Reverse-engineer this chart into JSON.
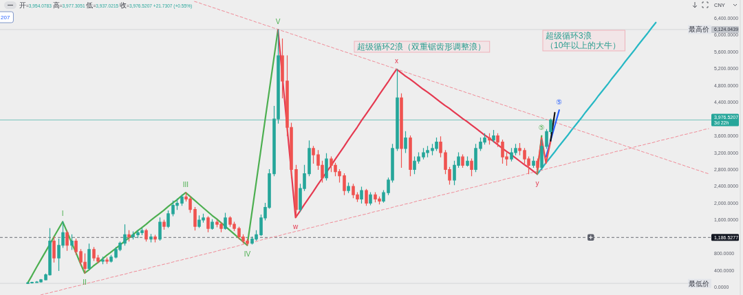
{
  "chart_data": {
    "type": "candlestick",
    "subtitle": "开=3,954.0783 高=3,977.3051 低=3,937.0215 收=3,976.5207 +21.7307 (+0.55%)",
    "ylabel": "CNY",
    "tick_labels": "y",
    "categories": [
      null,
      null,
      null,
      null,
      null,
      null,
      null,
      null,
      null,
      null,
      null,
      null,
      null,
      null,
      null,
      null,
      null,
      null,
      null,
      null,
      null,
      null,
      null,
      null,
      null,
      null,
      null,
      null,
      null,
      null,
      null,
      null,
      null,
      null,
      null,
      null,
      null,
      null,
      null,
      null,
      null,
      null,
      null,
      null,
      null,
      null,
      null,
      null,
      null,
      null,
      null,
      null,
      null,
      null,
      null,
      null,
      null,
      null,
      null,
      null,
      null,
      null,
      null,
      null,
      null,
      null,
      null,
      null,
      null,
      null,
      null,
      null,
      null,
      null,
      null,
      null,
      null,
      null,
      null,
      null,
      null,
      null,
      null,
      null,
      null,
      null,
      null,
      null,
      null,
      null,
      null,
      null,
      null,
      null,
      null,
      null,
      null,
      null,
      null,
      null,
      null,
      null,
      null,
      null,
      null,
      null,
      null,
      null,
      null,
      null,
      null,
      null,
      null,
      null,
      null,
      null,
      null,
      null,
      null,
      null,
      null,
      null,
      null,
      null,
      null,
      null,
      null,
      null,
      null,
      null,
      null,
      null,
      null,
      null,
      null,
      null,
      null,
      null,
      null,
      null,
      null,
      null,
      null,
      null,
      null,
      null,
      null,
      null,
      null,
      null,
      null,
      null,
      null,
      null,
      null,
      null
    ],
    "ylim": [
      -180,
      6825
    ],
    "yticks": [
      {
        "value": 0,
        "label": "0.0000"
      },
      {
        "value": 400,
        "label": "400.0000"
      },
      {
        "value": 800,
        "label": "800.0000"
      },
      {
        "value": 1186.5277,
        "label": "1,186.5277"
      },
      {
        "value": 1600,
        "label": "1,600.0000"
      },
      {
        "value": 2000,
        "label": "2,000.0000"
      },
      {
        "value": 2400,
        "label": "2,400.0000"
      },
      {
        "value": 2800,
        "label": "2,800.0000"
      },
      {
        "value": 3200,
        "label": "3,200.0000"
      },
      {
        "value": 3600,
        "label": "3,600.0000"
      },
      {
        "value": 3976.5207,
        "label": "3,976.5207\n3d 22h"
      },
      {
        "value": 4400,
        "label": "4,400.0000"
      },
      {
        "value": 4800,
        "label": "4,800.0000"
      },
      {
        "value": 5200,
        "label": "5,200.0000"
      },
      {
        "value": 5600,
        "label": "5,600.0000"
      },
      {
        "value": 6000,
        "label": "6,000.0000"
      },
      {
        "value": 6124.0439,
        "label": "6,124.0439"
      },
      {
        "value": 6400,
        "label": "6,400.0000"
      }
    ],
    "ohlc": [
      [
        100,
        115,
        96,
        110
      ],
      [
        110,
        125,
        105,
        120
      ],
      [
        120,
        140,
        115,
        130
      ],
      [
        130,
        190,
        125,
        180
      ],
      [
        180,
        320,
        175,
        300
      ],
      [
        300,
        1400,
        290,
        1100
      ],
      [
        1100,
        1200,
        600,
        700
      ],
      [
        700,
        1150,
        400,
        1000
      ],
      [
        1000,
        1560,
        950,
        1300
      ],
      [
        1300,
        1350,
        880,
        1000
      ],
      [
        1000,
        1250,
        900,
        1100
      ],
      [
        1100,
        1150,
        780,
        850
      ],
      [
        850,
        900,
        520,
        600
      ],
      [
        600,
        800,
        340,
        450
      ],
      [
        450,
        1030,
        430,
        900
      ],
      [
        900,
        950,
        640,
        700
      ],
      [
        700,
        760,
        580,
        620
      ],
      [
        620,
        720,
        560,
        650
      ],
      [
        650,
        700,
        570,
        620
      ],
      [
        620,
        760,
        600,
        720
      ],
      [
        720,
        950,
        700,
        900
      ],
      [
        900,
        1080,
        870,
        1050
      ],
      [
        1050,
        1490,
        1000,
        1250
      ],
      [
        1250,
        1350,
        1100,
        1200
      ],
      [
        1200,
        1320,
        1150,
        1250
      ],
      [
        1250,
        1360,
        1180,
        1300
      ],
      [
        1300,
        1400,
        1250,
        1350
      ],
      [
        1350,
        1380,
        1100,
        1150
      ],
      [
        1150,
        1260,
        1080,
        1200
      ],
      [
        1200,
        1240,
        1080,
        1150
      ],
      [
        1150,
        1650,
        1120,
        1550
      ],
      [
        1550,
        1600,
        1380,
        1450
      ],
      [
        1450,
        1820,
        1420,
        1750
      ],
      [
        1750,
        2050,
        1700,
        1950
      ],
      [
        1950,
        2100,
        1850,
        2000
      ],
      [
        2000,
        2200,
        1950,
        2150
      ],
      [
        2150,
        2250,
        2050,
        2100
      ],
      [
        2100,
        2150,
        1780,
        1850
      ],
      [
        1850,
        1900,
        1360,
        1450
      ],
      [
        1450,
        1700,
        1420,
        1600
      ],
      [
        1600,
        1740,
        1550,
        1650
      ],
      [
        1650,
        1680,
        1320,
        1400
      ],
      [
        1400,
        1610,
        1380,
        1550
      ],
      [
        1550,
        1600,
        1440,
        1500
      ],
      [
        1500,
        1540,
        1320,
        1400
      ],
      [
        1400,
        1760,
        1380,
        1650
      ],
      [
        1650,
        1680,
        1450,
        1500
      ],
      [
        1500,
        1550,
        1350,
        1400
      ],
      [
        1400,
        1430,
        1150,
        1200
      ],
      [
        1200,
        1250,
        1050,
        1100
      ],
      [
        1100,
        1150,
        1000,
        1050
      ],
      [
        1050,
        1200,
        1030,
        1150
      ],
      [
        1150,
        1350,
        1120,
        1250
      ],
      [
        1250,
        1720,
        1230,
        1650
      ],
      [
        1650,
        2000,
        1600,
        1900
      ],
      [
        1900,
        2800,
        1880,
        2700
      ],
      [
        2700,
        4300,
        2650,
        4000
      ],
      [
        4000,
        6120,
        3900,
        5500
      ],
      [
        5500,
        5900,
        4500,
        4900
      ],
      [
        4900,
        5500,
        3600,
        3800
      ],
      [
        3800,
        3900,
        2600,
        2800
      ],
      [
        2800,
        2900,
        1660,
        1850
      ],
      [
        1850,
        2450,
        1800,
        2350
      ],
      [
        2350,
        2900,
        2300,
        2700
      ],
      [
        2700,
        3480,
        2650,
        3300
      ],
      [
        3300,
        3350,
        2950,
        3150
      ],
      [
        3150,
        3250,
        2800,
        2900
      ],
      [
        2900,
        3000,
        2500,
        2600
      ],
      [
        2600,
        3180,
        2550,
        3050
      ],
      [
        3050,
        3100,
        2750,
        2900
      ],
      [
        2900,
        2950,
        2650,
        2750
      ],
      [
        2750,
        2800,
        2500,
        2650
      ],
      [
        2650,
        2700,
        2200,
        2300
      ],
      [
        2300,
        2480,
        2250,
        2400
      ],
      [
        2400,
        2450,
        2130,
        2200
      ],
      [
        2200,
        2250,
        2040,
        2100
      ],
      [
        2100,
        2380,
        2000,
        2300
      ],
      [
        2300,
        2330,
        1950,
        2000
      ],
      [
        2000,
        2250,
        1960,
        2200
      ],
      [
        2200,
        2250,
        2030,
        2100
      ],
      [
        2100,
        2150,
        1980,
        2050
      ],
      [
        2050,
        2300,
        2020,
        2250
      ],
      [
        2250,
        2600,
        2200,
        2550
      ],
      [
        2550,
        3400,
        2500,
        3300
      ],
      [
        3300,
        5180,
        3250,
        4500
      ],
      [
        4500,
        4600,
        2850,
        3300
      ],
      [
        3300,
        3700,
        3200,
        3550
      ],
      [
        3550,
        3600,
        2650,
        2800
      ],
      [
        2800,
        3100,
        2700,
        3000
      ],
      [
        3000,
        3200,
        2950,
        3100
      ],
      [
        3100,
        3300,
        3050,
        3200
      ],
      [
        3200,
        3350,
        3100,
        3250
      ],
      [
        3250,
        3400,
        3150,
        3300
      ],
      [
        3300,
        3550,
        3250,
        3450
      ],
      [
        3450,
        3580,
        3100,
        3200
      ],
      [
        3200,
        3250,
        2700,
        2800
      ],
      [
        2800,
        2850,
        2450,
        2550
      ],
      [
        2550,
        3000,
        2440,
        2900
      ],
      [
        2900,
        3200,
        2850,
        3100
      ],
      [
        3100,
        3150,
        2850,
        2900
      ],
      [
        2900,
        3100,
        2880,
        3000
      ],
      [
        3000,
        3050,
        2650,
        2800
      ],
      [
        2800,
        3400,
        2750,
        3300
      ],
      [
        3300,
        3550,
        3250,
        3450
      ],
      [
        3450,
        3650,
        3400,
        3550
      ],
      [
        3550,
        3650,
        3400,
        3500
      ],
      [
        3500,
        3730,
        3450,
        3600
      ],
      [
        3600,
        3650,
        3350,
        3450
      ],
      [
        3450,
        3500,
        2950,
        3100
      ],
      [
        3100,
        3200,
        2900,
        3050
      ],
      [
        3050,
        3300,
        3000,
        3200
      ],
      [
        3200,
        3400,
        3150,
        3300
      ],
      [
        3300,
        3420,
        3150,
        3250
      ],
      [
        3250,
        3300,
        2950,
        3050
      ],
      [
        3050,
        3100,
        2700,
        2900
      ],
      [
        2900,
        3100,
        2850,
        3000
      ],
      [
        3000,
        3050,
        2690,
        2850
      ],
      [
        2850,
        3500,
        2800,
        3350
      ],
      [
        3350,
        3750,
        3300,
        3700
      ],
      [
        3700,
        4000,
        3650,
        3976.5207
      ],
      null,
      null,
      null,
      null,
      null,
      null,
      null,
      null,
      null,
      null,
      null,
      null,
      null,
      null,
      null,
      null,
      null,
      null,
      null,
      null,
      null,
      null,
      null,
      null,
      null,
      null,
      null,
      null,
      null,
      null,
      null,
      null,
      null,
      null,
      null,
      null
    ],
    "colors": [
      "#26a69a",
      "#26a69a",
      "#26a69a",
      "#26a69a",
      "#26a69a",
      "#26a69a",
      "#ef5350",
      "#26a69a",
      "#26a69a",
      "#ef5350",
      "#26a69a",
      "#ef5350",
      "#ef5350",
      "#ef5350",
      "#26a69a",
      "#ef5350",
      "#ef5350",
      "#26a69a",
      "#ef5350",
      "#26a69a",
      "#26a69a",
      "#26a69a",
      "#26a69a",
      "#ef5350",
      "#26a69a",
      "#26a69a",
      "#26a69a",
      "#ef5350",
      "#26a69a",
      "#ef5350",
      "#26a69a",
      "#ef5350",
      "#26a69a",
      "#26a69a",
      "#26a69a",
      "#26a69a",
      "#ef5350",
      "#ef5350",
      "#ef5350",
      "#26a69a",
      "#26a69a",
      "#ef5350",
      "#26a69a",
      "#ef5350",
      "#ef5350",
      "#26a69a",
      "#ef5350",
      "#ef5350",
      "#ef5350",
      "#ef5350",
      "#ef5350",
      "#26a69a",
      "#26a69a",
      "#26a69a",
      "#26a69a",
      "#26a69a",
      "#26a69a",
      "#26a69a",
      "#ef5350",
      "#ef5350",
      "#ef5350",
      "#ef5350",
      "#26a69a",
      "#26a69a",
      "#26a69a",
      "#ef5350",
      "#ef5350",
      "#ef5350",
      "#26a69a",
      "#ef5350",
      "#ef5350",
      "#ef5350",
      "#ef5350",
      "#26a69a",
      "#ef5350",
      "#ef5350",
      "#26a69a",
      "#ef5350",
      "#26a69a",
      "#ef5350",
      "#ef5350",
      "#26a69a",
      "#26a69a",
      "#26a69a",
      "#26a69a",
      "#ef5350",
      "#26a69a",
      "#ef5350",
      "#26a69a",
      "#26a69a",
      "#26a69a",
      "#26a69a",
      "#26a69a",
      "#26a69a",
      "#ef5350",
      "#ef5350",
      "#ef5350",
      "#26a69a",
      "#26a69a",
      "#ef5350",
      "#26a69a",
      "#ef5350",
      "#26a69a",
      "#26a69a",
      "#26a69a",
      "#ef5350",
      "#26a69a",
      "#ef5350",
      "#ef5350",
      "#ef5350",
      "#26a69a",
      "#26a69a",
      "#ef5350",
      "#ef5350",
      "#ef5350",
      "#26a69a",
      "#ef5350",
      "#26a69a",
      "#26a69a",
      "#26a69a",
      null,
      null,
      null,
      null,
      null,
      null,
      null,
      null,
      null,
      null,
      null,
      null,
      null,
      null,
      null,
      null,
      null,
      null,
      null,
      null,
      null,
      null,
      null,
      null,
      null,
      null,
      null,
      null,
      null,
      null,
      null,
      null,
      null,
      null,
      null,
      null
    ],
    "series": [
      {
        "type": "line",
        "color": "#4caf50",
        "values": [
          100,
          280,
          470,
          650,
          830,
          1010,
          1200,
          1380,
          1560,
          1320,
          1070,
          830,
          580,
          340,
          420,
          510,
          590,
          670,
          760,
          840,
          920,
          1000,
          1090,
          1170,
          1250,
          1340,
          1420,
          1500,
          1590,
          1670,
          1750,
          1830,
          1920,
          2000,
          2080,
          2170,
          2250,
          2160,
          2070,
          1980,
          1890,
          1800,
          1710,
          1630,
          1540,
          1450,
          1360,
          1270,
          1180,
          1090,
          1000,
          1730,
          2460,
          3190,
          3930,
          4660,
          5390,
          6120,
          null,
          null,
          null,
          null,
          null,
          null,
          null,
          null,
          null,
          null,
          null,
          null,
          null,
          null,
          null,
          null,
          null,
          null,
          null,
          null,
          null,
          null,
          null,
          null,
          null,
          null,
          null,
          null,
          null,
          null,
          null,
          null,
          null,
          null,
          null,
          null,
          null,
          null,
          null,
          null,
          null,
          null,
          null,
          null,
          null,
          null,
          null,
          null,
          null,
          null,
          null,
          null,
          null,
          null,
          null,
          null,
          null,
          null,
          null,
          null,
          null,
          null,
          null,
          null,
          null,
          null,
          null,
          null,
          null,
          null,
          null,
          null,
          null,
          null,
          null,
          null,
          null,
          null,
          null,
          null,
          null,
          null,
          null,
          null,
          null,
          null,
          null,
          null,
          null,
          null,
          null,
          null,
          null,
          null,
          null,
          null,
          null,
          null
        ]
      },
      {
        "type": "line",
        "color": "#e53950",
        "values": [
          null,
          null,
          null,
          null,
          null,
          null,
          null,
          null,
          null,
          null,
          null,
          null,
          null,
          null,
          null,
          null,
          null,
          null,
          null,
          null,
          null,
          null,
          null,
          null,
          null,
          null,
          null,
          null,
          null,
          null,
          null,
          null,
          null,
          null,
          null,
          null,
          null,
          null,
          null,
          null,
          null,
          null,
          null,
          null,
          null,
          null,
          null,
          null,
          null,
          null,
          null,
          null,
          null,
          null,
          null,
          null,
          null,
          6120,
          5010,
          3890,
          2780,
          1660,
          1810,
          1970,
          2120,
          2270,
          2430,
          2580,
          2730,
          2880,
          3040,
          3190,
          3340,
          3500,
          3650,
          3800,
          3960,
          4110,
          4260,
          4410,
          4570,
          4720,
          4870,
          5030,
          5180,
          5100,
          5020,
          4950,
          4870,
          4790,
          4710,
          4640,
          4560,
          4480,
          4400,
          4320,
          4250,
          4170,
          4090,
          4010,
          3940,
          3860,
          3780,
          3700,
          3620,
          3550,
          3470,
          3390,
          3310,
          3230,
          3160,
          3080,
          3000,
          2920,
          2850,
          2770,
          2690,
          null,
          null,
          null,
          null,
          null,
          null,
          null,
          null,
          null,
          null,
          null,
          null,
          null,
          null,
          null,
          null,
          null,
          null,
          null,
          null,
          null,
          null,
          null,
          null,
          null,
          null,
          null,
          null,
          null,
          null,
          null,
          null,
          null,
          null,
          null,
          null,
          null,
          null,
          null
        ]
      },
      {
        "type": "line",
        "color": "#26b8c4",
        "values": [
          null,
          null,
          null,
          null,
          null,
          null,
          null,
          null,
          null,
          null,
          null,
          null,
          null,
          null,
          null,
          null,
          null,
          null,
          null,
          null,
          null,
          null,
          null,
          null,
          null,
          null,
          null,
          null,
          null,
          null,
          null,
          null,
          null,
          null,
          null,
          null,
          null,
          null,
          null,
          null,
          null,
          null,
          null,
          null,
          null,
          null,
          null,
          null,
          null,
          null,
          null,
          null,
          null,
          null,
          null,
          null,
          null,
          null,
          null,
          null,
          null,
          null,
          null,
          null,
          null,
          null,
          null,
          null,
          null,
          null,
          null,
          null,
          null,
          null,
          null,
          null,
          null,
          null,
          null,
          null,
          null,
          null,
          null,
          null,
          null,
          null,
          null,
          null,
          null,
          null,
          null,
          null,
          null,
          null,
          null,
          null,
          null,
          null,
          null,
          null,
          null,
          null,
          null,
          null,
          null,
          null,
          null,
          null,
          null,
          null,
          null,
          null,
          null,
          null,
          null,
          null,
          2690,
          2820,
          2960,
          3090,
          3220,
          3360,
          3490,
          3620,
          3760,
          3890,
          4020,
          4160,
          4290,
          4420,
          4560,
          4690,
          4820,
          4960,
          5090,
          5220,
          5360,
          5490,
          5620,
          5760,
          5890,
          6020,
          6160,
          6290,
          null,
          null,
          null,
          null,
          null,
          null,
          null,
          null,
          null,
          null,
          null,
          null
        ]
      },
      {
        "type": "line",
        "color": "#f08a96",
        "line_style": "dashed",
        "values": [
          null,
          null,
          null,
          null,
          null,
          null,
          null,
          null,
          null,
          null,
          null,
          null,
          null,
          null,
          null,
          null,
          null,
          null,
          null,
          null,
          null,
          null,
          null,
          null,
          null,
          null,
          null,
          null,
          null,
          null,
          null,
          null,
          null,
          null,
          null,
          null,
          null,
          null,
          6790,
          6760,
          6720,
          6690,
          6650,
          6620,
          6580,
          6550,
          6510,
          6480,
          6440,
          6410,
          6370,
          6340,
          6300,
          6270,
          6230,
          6200,
          6160,
          6130,
          6090,
          6060,
          6020,
          5990,
          5950,
          5920,
          5880,
          5850,
          5810,
          5780,
          5740,
          5710,
          5670,
          5640,
          5600,
          5570,
          5530,
          5500,
          5460,
          5430,
          5390,
          5360,
          5320,
          5290,
          5250,
          5220,
          5180,
          5150,
          5110,
          5080,
          5040,
          5010,
          4970,
          4940,
          4900,
          4870,
          4830,
          4800,
          4760,
          4730,
          4690,
          4660,
          4620,
          4590,
          4550,
          4520,
          4480,
          4450,
          4410,
          4380,
          4340,
          4310,
          4270,
          4240,
          4200,
          4170,
          4130,
          4100,
          4060,
          4030,
          3990,
          3960,
          3920,
          3890,
          3850,
          3820,
          3780,
          3750,
          3710,
          3680,
          3640,
          3610,
          3570,
          3540,
          3500,
          3470,
          3430,
          3400,
          3360,
          3330,
          3290,
          3260,
          3220,
          3190,
          3150,
          3120,
          3080,
          3050,
          3010,
          2980,
          2940,
          2910,
          2870,
          2840,
          2800,
          2770,
          2730,
          2700
        ]
      },
      {
        "type": "line",
        "color": "#f08a96",
        "line_style": "dashed",
        "values": [
          null,
          null,
          null,
          -180,
          -150,
          -130,
          -100,
          -80,
          -50,
          -20,
          0,
          30,
          50,
          80,
          110,
          130,
          160,
          180,
          210,
          240,
          260,
          290,
          310,
          340,
          370,
          390,
          420,
          440,
          470,
          500,
          520,
          550,
          570,
          600,
          630,
          650,
          680,
          700,
          730,
          760,
          780,
          810,
          830,
          860,
          890,
          910,
          940,
          960,
          990,
          1020,
          1040,
          1070,
          1090,
          1120,
          1150,
          1170,
          1200,
          1220,
          1250,
          1280,
          1300,
          1330,
          1350,
          1380,
          1410,
          1430,
          1460,
          1480,
          1510,
          1540,
          1560,
          1590,
          1610,
          1640,
          1670,
          1690,
          1720,
          1740,
          1770,
          1800,
          1820,
          1850,
          1870,
          1900,
          1930,
          1950,
          1980,
          2000,
          2030,
          2060,
          2080,
          2110,
          2130,
          2160,
          2190,
          2210,
          2240,
          2260,
          2290,
          2320,
          2340,
          2370,
          2390,
          2420,
          2450,
          2470,
          2500,
          2520,
          2550,
          2580,
          2600,
          2630,
          2650,
          2680,
          2710,
          2730,
          2760,
          2780,
          2810,
          2840,
          2860,
          2890,
          2910,
          2940,
          2970,
          2990,
          3020,
          3040,
          3070,
          3100,
          3120,
          3150,
          3170,
          3200,
          3230,
          3250,
          3280,
          3300,
          3330,
          3360,
          3380,
          3410,
          3430,
          3460,
          3490,
          3510,
          3540,
          3560,
          3590,
          3620,
          3640,
          3670,
          3690,
          3720,
          3750,
          3770
        ]
      },
      {
        "type": "line",
        "color": "#4caf50",
        "values": [
          null,
          null,
          null,
          null,
          null,
          null,
          null,
          null,
          null,
          null,
          null,
          null,
          null,
          null,
          null,
          null,
          null,
          null,
          null,
          null,
          null,
          null,
          null,
          null,
          null,
          null,
          null,
          null,
          null,
          null,
          null,
          null,
          null,
          null,
          null,
          null,
          null,
          null,
          null,
          null,
          null,
          null,
          null,
          null,
          null,
          null,
          null,
          null,
          null,
          null,
          null,
          null,
          null,
          null,
          null,
          null,
          null,
          null,
          null,
          null,
          null,
          null,
          null,
          null,
          null,
          null,
          null,
          null,
          null,
          null,
          null,
          null,
          null,
          null,
          null,
          null,
          null,
          null,
          null,
          null,
          null,
          null,
          null,
          null,
          null,
          null,
          null,
          null,
          null,
          null,
          null,
          null,
          null,
          null,
          null,
          null,
          null,
          null,
          null,
          null,
          null,
          null,
          null,
          null,
          null,
          null,
          null,
          null,
          null,
          null,
          null,
          null,
          null,
          null,
          null,
          null,
          2690,
          3600,
          null,
          null,
          null,
          null,
          null,
          null,
          null,
          null,
          null,
          null,
          null,
          null,
          null,
          null,
          null,
          null,
          null,
          null,
          null,
          null,
          null,
          null,
          null,
          null,
          null,
          null,
          null,
          null,
          null,
          null,
          null,
          null,
          null,
          null,
          null,
          null,
          null,
          null
        ]
      },
      {
        "type": "line",
        "color": "#2962ff",
        "values": [
          null,
          null,
          null,
          null,
          null,
          null,
          null,
          null,
          null,
          null,
          null,
          null,
          null,
          null,
          null,
          null,
          null,
          null,
          null,
          null,
          null,
          null,
          null,
          null,
          null,
          null,
          null,
          null,
          null,
          null,
          null,
          null,
          null,
          null,
          null,
          null,
          null,
          null,
          null,
          null,
          null,
          null,
          null,
          null,
          null,
          null,
          null,
          null,
          null,
          null,
          null,
          null,
          null,
          null,
          null,
          null,
          null,
          null,
          null,
          null,
          null,
          null,
          null,
          null,
          null,
          null,
          null,
          null,
          null,
          null,
          null,
          null,
          null,
          null,
          null,
          null,
          null,
          null,
          null,
          null,
          null,
          null,
          null,
          null,
          null,
          null,
          null,
          null,
          null,
          null,
          null,
          null,
          null,
          null,
          null,
          null,
          null,
          null,
          null,
          null,
          null,
          null,
          null,
          null,
          null,
          null,
          null,
          null,
          null,
          null,
          null,
          null,
          null,
          null,
          null,
          null,
          null,
          null,
          3100,
          3470,
          3840,
          4210,
          null,
          null,
          null,
          null,
          null,
          null,
          null,
          null,
          null,
          null,
          null,
          null,
          null,
          null,
          null,
          null,
          null,
          null,
          null,
          null,
          null,
          null,
          null,
          null,
          null,
          null,
          null,
          null,
          null,
          null,
          null,
          null,
          null,
          null
        ]
      },
      {
        "type": "line",
        "color": "#111111",
        "values": [
          null,
          null,
          null,
          null,
          null,
          null,
          null,
          null,
          null,
          null,
          null,
          null,
          null,
          null,
          null,
          null,
          null,
          null,
          null,
          null,
          null,
          null,
          null,
          null,
          null,
          null,
          null,
          null,
          null,
          null,
          null,
          null,
          null,
          null,
          null,
          null,
          null,
          null,
          null,
          null,
          null,
          null,
          null,
          null,
          null,
          null,
          null,
          null,
          null,
          null,
          null,
          null,
          null,
          null,
          null,
          null,
          null,
          null,
          null,
          null,
          null,
          null,
          null,
          null,
          null,
          null,
          null,
          null,
          null,
          null,
          null,
          null,
          null,
          null,
          null,
          null,
          null,
          null,
          null,
          null,
          null,
          null,
          null,
          null,
          null,
          null,
          null,
          null,
          null,
          null,
          null,
          null,
          null,
          null,
          null,
          null,
          null,
          null,
          null,
          null,
          null,
          null,
          null,
          null,
          null,
          null,
          null,
          null,
          null,
          null,
          null,
          null,
          null,
          null,
          null,
          null,
          null,
          null,
          null,
          3450,
          4150,
          null,
          null,
          null,
          null,
          null,
          null,
          null,
          null,
          null,
          null,
          null,
          null,
          null,
          null,
          null,
          null,
          null,
          null,
          null,
          null,
          null,
          null,
          null,
          null,
          null,
          null,
          null,
          null,
          null,
          null,
          null,
          null,
          null,
          null,
          null
        ]
      },
      {
        "type": "line",
        "color": "#ef4f4f",
        "values": [
          null,
          null,
          null,
          null,
          null,
          null,
          null,
          null,
          null,
          null,
          null,
          null,
          null,
          null,
          null,
          null,
          null,
          null,
          null,
          null,
          null,
          null,
          null,
          null,
          null,
          null,
          null,
          null,
          null,
          null,
          null,
          null,
          null,
          null,
          null,
          null,
          null,
          null,
          null,
          null,
          null,
          null,
          null,
          null,
          null,
          null,
          null,
          null,
          null,
          null,
          null,
          null,
          null,
          null,
          null,
          null,
          null,
          null,
          null,
          null,
          null,
          null,
          null,
          null,
          null,
          null,
          null,
          null,
          null,
          null,
          null,
          null,
          null,
          null,
          null,
          null,
          null,
          null,
          null,
          null,
          null,
          null,
          null,
          null,
          null,
          null,
          null,
          null,
          null,
          null,
          null,
          null,
          null,
          null,
          null,
          null,
          null,
          null,
          null,
          null,
          null,
          null,
          null,
          null,
          null,
          null,
          null,
          null,
          null,
          null,
          null,
          null,
          null,
          null,
          null,
          null,
          2800,
          3550,
          2950,
          3450,
          null,
          null,
          null,
          null,
          null,
          null,
          null,
          null,
          null,
          null,
          null,
          null,
          null,
          null,
          null,
          null,
          null,
          null,
          null,
          null,
          null,
          null,
          null,
          null,
          null,
          null,
          null,
          null,
          null,
          null,
          null,
          null,
          null,
          null,
          null,
          null
        ]
      }
    ],
    "ref_lines": [
      {
        "axis": "y",
        "value": 6124.0439,
        "label": "最高价",
        "color": "#c3c6cc"
      },
      {
        "axis": "y",
        "value": 3976.5207,
        "color": "#26a69a"
      },
      {
        "axis": "y",
        "value": 1186.5277,
        "color": "#131722",
        "line_style": "dashed"
      },
      {
        "axis": "y",
        "value": 96,
        "label": "最低价",
        "color": "#c3c6cc"
      }
    ],
    "annotations": [
      {
        "text": "I",
        "y": 1560
      },
      {
        "text": "II",
        "y": 340
      },
      {
        "text": "III",
        "y": 2250
      },
      {
        "text": "IV",
        "y": 1000
      },
      {
        "text": "V",
        "y": 6120
      },
      {
        "text": "w",
        "y": 1660
      },
      {
        "text": "x",
        "y": 5180
      },
      {
        "text": "y",
        "y": 2690
      },
      {
        "text": "⑤",
        "y": 3600
      },
      {
        "text": "⑤",
        "y": 4210
      },
      "超级循环2浪（双重锯齿形调整浪）",
      "超级循环3浪",
      "（10年以上的大牛）",
      "207"
    ]
  }
}
